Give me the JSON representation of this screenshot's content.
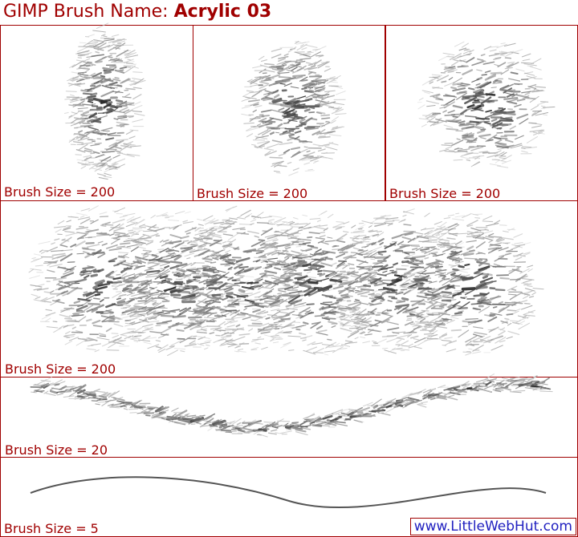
{
  "header": {
    "title": "GIMP Brush Name:",
    "brush": "Acrylic 03"
  },
  "panels": [
    {
      "label": "Brush Size = 200"
    },
    {
      "label": "Brush Size = 200"
    },
    {
      "label": "Brush Size = 200"
    },
    {
      "label": "Brush Size = 200"
    },
    {
      "label": "Brush Size = 20"
    },
    {
      "label": "Brush Size = 5"
    }
  ],
  "footer": {
    "link": "www.LittleWebHut.com"
  }
}
